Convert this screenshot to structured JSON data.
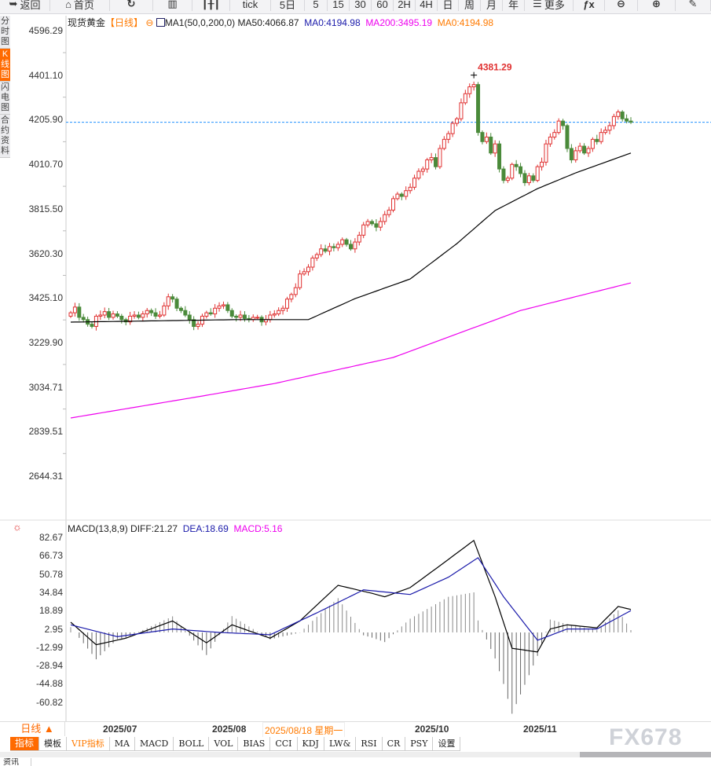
{
  "toolbar": {
    "items": [
      {
        "label": "返回",
        "icon": "back-arrow-icon"
      },
      {
        "label": "首页",
        "icon": "home-icon"
      },
      {
        "label": "",
        "icon": "refresh-icon"
      },
      {
        "label": "",
        "icon": "bar-chart-icon"
      },
      {
        "label": "",
        "icon": "candlestick-icon"
      },
      {
        "label": "tick"
      },
      {
        "label": "5日"
      },
      {
        "label": "5"
      },
      {
        "label": "15"
      },
      {
        "label": "30"
      },
      {
        "label": "60"
      },
      {
        "label": "2H"
      },
      {
        "label": "4H"
      },
      {
        "label": "日"
      },
      {
        "label": "周"
      },
      {
        "label": "月"
      },
      {
        "label": "年"
      },
      {
        "label": "更多",
        "icon": "menu-icon"
      },
      {
        "label": "",
        "icon": "function-fx-icon"
      },
      {
        "label": "",
        "icon": "zoom-out-icon"
      },
      {
        "label": "",
        "icon": "zoom-in-icon"
      },
      {
        "label": "",
        "icon": "pen-icon"
      }
    ]
  },
  "side_tabs": [
    {
      "label": "分时图"
    },
    {
      "label": "K线图",
      "active": true
    },
    {
      "label": "闪电图"
    },
    {
      "label": "合约资料"
    }
  ],
  "legend": {
    "symbol": "现货黄金",
    "period": "【日线】",
    "ma_name": "MA1(50,0,200,0)",
    "ma50": "MA50:4066.87",
    "ma0a": "MA0:4194.98",
    "ma200": "MA200:3495.19",
    "ma0b": "MA0:4194.98"
  },
  "price_axis": [
    "4596.29",
    "4401.10",
    "4205.90",
    "4010.70",
    "3815.50",
    "3620.30",
    "3425.10",
    "3229.90",
    "3034.71",
    "2839.51",
    "2644.31"
  ],
  "high_label": "4381.29",
  "current_price": 4194.98,
  "macd_legend": {
    "name": "MACD(13,8,9)",
    "diff": "DIFF:21.27",
    "dea": "DEA:18.69",
    "macd": "MACD:5.16"
  },
  "macd_axis": [
    "82.67",
    "66.73",
    "50.78",
    "34.84",
    "18.89",
    "2.95",
    "-12.99",
    "-28.94",
    "-44.88",
    "-60.82"
  ],
  "date_axis": {
    "period_button": "日线 ▲",
    "labels": [
      "2025/07",
      "2025/08",
      "2025/10",
      "2025/11"
    ],
    "cursor_date": "2025/08/18 星期一"
  },
  "indicator_tabs": [
    "指标",
    "模板",
    "VIP指标",
    "MA",
    "MACD",
    "BOLL",
    "VOL",
    "BIAS",
    "CCI",
    "KDJ",
    "LW&",
    "RSI",
    "CR",
    "PSY",
    "设置"
  ],
  "watermark": "FX678",
  "bottom_tab": "资讯",
  "colors": {
    "up": "#e03030",
    "down": "#4a8a3a",
    "ma50": "#000000",
    "ma200": "#ee00ee",
    "dea": "#1a1aaa",
    "accent": "#ff6a00",
    "current_line": "#1e90ff"
  },
  "chart_data": {
    "type": "candlestick",
    "ylim": [
      2644.31,
      4596.29
    ],
    "closes": [
      3360,
      3385,
      3340,
      3330,
      3310,
      3300,
      3345,
      3350,
      3365,
      3340,
      3355,
      3345,
      3330,
      3320,
      3345,
      3350,
      3340,
      3355,
      3370,
      3360,
      3345,
      3350,
      3390,
      3430,
      3420,
      3380,
      3370,
      3350,
      3330,
      3300,
      3310,
      3345,
      3360,
      3355,
      3380,
      3390,
      3395,
      3370,
      3345,
      3340,
      3350,
      3335,
      3330,
      3340,
      3340,
      3320,
      3330,
      3350,
      3355,
      3370,
      3380,
      3420,
      3440,
      3470,
      3530,
      3540,
      3560,
      3600,
      3615,
      3640,
      3630,
      3650,
      3645,
      3660,
      3680,
      3660,
      3640,
      3670,
      3700,
      3745,
      3760,
      3750,
      3735,
      3760,
      3790,
      3810,
      3860,
      3880,
      3870,
      3895,
      3910,
      3950,
      3980,
      3990,
      4030,
      4040,
      4000,
      4080,
      4120,
      4145,
      4190,
      4210,
      4280,
      4320,
      4350,
      4360,
      4150,
      4110,
      4130,
      4060,
      4100,
      3990,
      3940,
      3950,
      4010,
      4000,
      3970,
      3930,
      3960,
      3940,
      4000,
      4020,
      4100,
      4130,
      4150,
      4200,
      4180,
      4080,
      4030,
      4070,
      4090,
      4060,
      4080,
      4120,
      4110,
      4150,
      4160,
      4180,
      4220,
      4240,
      4210,
      4200,
      4195
    ],
    "ma50_knots": [
      [
        0,
        3319
      ],
      [
        21,
        3325
      ],
      [
        39,
        3330
      ],
      [
        56,
        3330
      ],
      [
        67,
        3422
      ],
      [
        80,
        3508
      ],
      [
        91,
        3663
      ],
      [
        100,
        3808
      ],
      [
        110,
        3904
      ],
      [
        119,
        3973
      ],
      [
        132,
        4060
      ]
    ],
    "ma200_knots": [
      [
        0,
        2899
      ],
      [
        30,
        2992
      ],
      [
        48,
        3050
      ],
      [
        76,
        3164
      ],
      [
        91,
        3267
      ],
      [
        106,
        3370
      ],
      [
        132,
        3491
      ]
    ],
    "macd": {
      "ylim": [
        -70,
        90
      ],
      "diff_knots": [
        [
          0,
          8.9
        ],
        [
          6,
          -10.7
        ],
        [
          13,
          -5
        ],
        [
          24,
          10
        ],
        [
          32,
          -9
        ],
        [
          38,
          6.6
        ],
        [
          47,
          -5
        ],
        [
          54,
          10
        ],
        [
          63,
          41
        ],
        [
          71,
          34
        ],
        [
          74,
          31
        ],
        [
          80,
          39
        ],
        [
          87,
          58
        ],
        [
          95,
          80
        ],
        [
          100,
          31
        ],
        [
          104,
          -13.8
        ],
        [
          110,
          -17
        ],
        [
          113,
          3
        ],
        [
          117,
          6.6
        ],
        [
          124,
          4
        ],
        [
          129,
          22.6
        ],
        [
          132,
          20
        ]
      ],
      "dea_knots": [
        [
          0,
          6.6
        ],
        [
          11,
          -3.7
        ],
        [
          24,
          3
        ],
        [
          35,
          0
        ],
        [
          47,
          -2
        ],
        [
          58,
          17
        ],
        [
          69,
          37
        ],
        [
          80,
          33
        ],
        [
          89,
          48
        ],
        [
          96,
          65
        ],
        [
          102,
          31
        ],
        [
          110,
          -6.8
        ],
        [
          117,
          3
        ],
        [
          124,
          3
        ],
        [
          132,
          19
        ]
      ]
    }
  }
}
